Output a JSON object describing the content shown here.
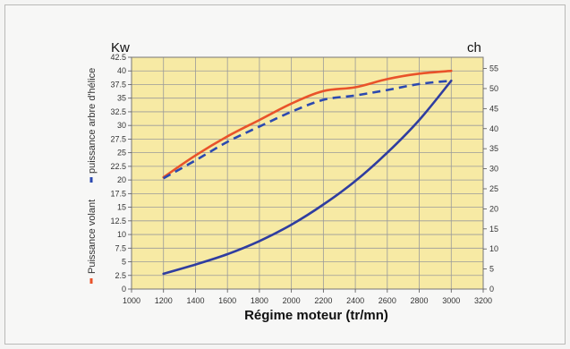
{
  "chart_data": {
    "type": "line",
    "xlabel": "Régime moteur (tr/mn)",
    "left_unit": "Kw",
    "right_unit": "ch",
    "x_ticks": [
      "1000",
      "1200",
      "1400",
      "1600",
      "1800",
      "2000",
      "2200",
      "2400",
      "2600",
      "2800",
      "3000",
      "3200"
    ],
    "y_ticks": [
      "0",
      "2.5",
      "5",
      "7.5",
      "10",
      "12.5",
      "15",
      "17.5",
      "20",
      "22.5",
      "25",
      "27.5",
      "30",
      "32.5",
      "35",
      "37.5",
      "40",
      "42.5"
    ],
    "y2_ticks": [
      "0",
      "5",
      "10",
      "15",
      "20",
      "25",
      "30",
      "35",
      "40",
      "45",
      "50",
      "55"
    ],
    "xlim": [
      1000,
      3200
    ],
    "ylim": [
      0,
      42.5
    ],
    "y2lim": [
      0,
      57.8
    ],
    "grid": true,
    "colors": {
      "plot_bg": "#f7eaa4",
      "grid": "#9a9a9a",
      "red": "#e9532a",
      "blue": "#2f3da0",
      "dash_blue": "#2b49b0"
    },
    "series": [
      {
        "name": "Puissance volant",
        "style": "solid",
        "color": "#e9532a",
        "x": [
          1200,
          1400,
          1600,
          1800,
          2000,
          2200,
          2400,
          2600,
          2800,
          3000
        ],
        "y": [
          20.5,
          24.5,
          28,
          31,
          34,
          36.3,
          37,
          38.5,
          39.5,
          40
        ]
      },
      {
        "name": "puissance arbre d'hélice",
        "style": "dashed",
        "color": "#2b49b0",
        "x": [
          1200,
          1400,
          1600,
          1800,
          2000,
          2200,
          2400,
          2600,
          2800,
          3000
        ],
        "y": [
          20.3,
          23.6,
          27,
          29.8,
          32.5,
          34.7,
          35.5,
          36.5,
          37.6,
          38.2
        ]
      },
      {
        "name": "",
        "style": "solid",
        "color": "#2f3da0",
        "x": [
          1200,
          1400,
          1600,
          1800,
          2000,
          2200,
          2400,
          2600,
          2800,
          3000
        ],
        "y": [
          2.8,
          4.5,
          6.4,
          8.8,
          11.8,
          15.5,
          19.8,
          25,
          31,
          38.2
        ]
      }
    ],
    "legend": {
      "red_label": "Puissance volant",
      "blue_label": "puissance arbre d'hélice",
      "placement": "left-vertical"
    }
  }
}
